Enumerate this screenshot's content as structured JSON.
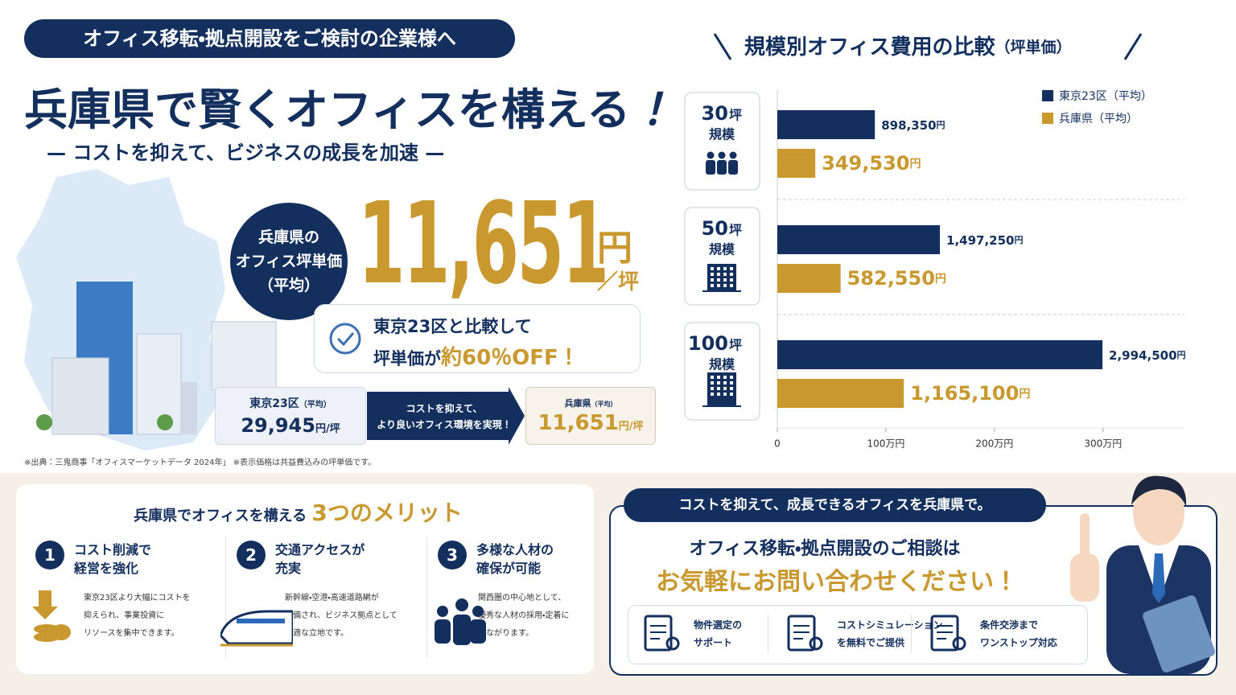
{
  "header": {
    "tag": "オフィス移転・拠点開設をご検討の企業様へ",
    "title": "兵庫県で賢くオフィスを構える",
    "title_mark": "！",
    "subtitle": "— コストを抑えて、ビジネスの成長を加速 —"
  },
  "price": {
    "badge": [
      "兵庫県の",
      "オフィス坪単価",
      "（平均）"
    ],
    "value": "11,651",
    "unit": "円",
    "per": "／坪"
  },
  "comparison_note": {
    "line1": "東京23区と比較して",
    "line2": "坪単価が",
    "highlight": "約60％OFF！"
  },
  "compare": {
    "tokyo_label": "東京23区",
    "tokyo_sub": "（平均）",
    "tokyo_value": "29,945",
    "unit": "円/坪",
    "arrow": [
      "コストを抑えて、",
      "より良いオフィス環境を実現！"
    ],
    "hyogo_label": "兵庫県",
    "hyogo_sub": "（平均）",
    "hyogo_value": "11,651"
  },
  "source": "※出典：三鬼商事「オフィスマーケットデータ 2024年」 ※表示価格は共益費込みの坪単価です。",
  "chart_data": {
    "type": "bar",
    "orientation": "horizontal",
    "title": "規模別オフィス費用の比較",
    "title_note": "（坪単価）",
    "categories": [
      "30",
      "50",
      "100"
    ],
    "category_unit": "坪",
    "category_suffix": "規模",
    "series": [
      {
        "name": "東京23区（平均）",
        "color": "#132f5e",
        "values": [
          898350,
          1497250,
          2994500
        ],
        "value_labels": [
          "898,350",
          "1,497,250",
          "2,994,500"
        ]
      },
      {
        "name": "兵庫県（平均）",
        "color": "#c9982f",
        "values": [
          349530,
          582550,
          1165100
        ],
        "value_labels": [
          "349,530",
          "582,550",
          "1,165,100"
        ]
      }
    ],
    "value_unit": "円",
    "xlim": [
      0,
      3750000
    ],
    "xticks": [
      0,
      {
        "value": 1000000,
        "label": "100万円"
      },
      {
        "value": 2000000,
        "label": "200万円"
      },
      {
        "value": 3000000,
        "label": "300万円"
      }
    ],
    "legend": "top-right"
  },
  "merits": {
    "title": "兵庫県でオフィスを構える",
    "highlight": "3つのメリット",
    "items": [
      {
        "number": "1",
        "title": [
          "コスト削減で",
          "経営を強化"
        ],
        "text": [
          "東京23区より大幅にコストを",
          "抑えられ、事業投資に",
          "リソースを集中できます。"
        ]
      },
      {
        "number": "2",
        "title": [
          "交通アクセスが",
          "充実"
        ],
        "text": [
          "新幹線・空港・高速道路網が",
          "整備され、ビジネス拠点として",
          "最適な立地です。"
        ]
      },
      {
        "number": "3",
        "title": [
          "多様な人材の",
          "確保が可能"
        ],
        "text": [
          "関西圏の中心地として、",
          "優秀な人材の採用・定着に",
          "つながります。"
        ]
      }
    ]
  },
  "contact": {
    "banner": "コストを抑えて、成長できるオフィスを兵庫県で。",
    "lead": "オフィス移転・拠点開設のご相談は",
    "cta": "お気軽にお問い合わせください！",
    "features": [
      {
        "text": [
          "物件選定の",
          "サポート"
        ]
      },
      {
        "text": [
          "コストシミュレーション",
          "を無料でご提供"
        ]
      },
      {
        "text": [
          "条件交渉まで",
          "ワンストップ対応"
        ]
      }
    ]
  }
}
